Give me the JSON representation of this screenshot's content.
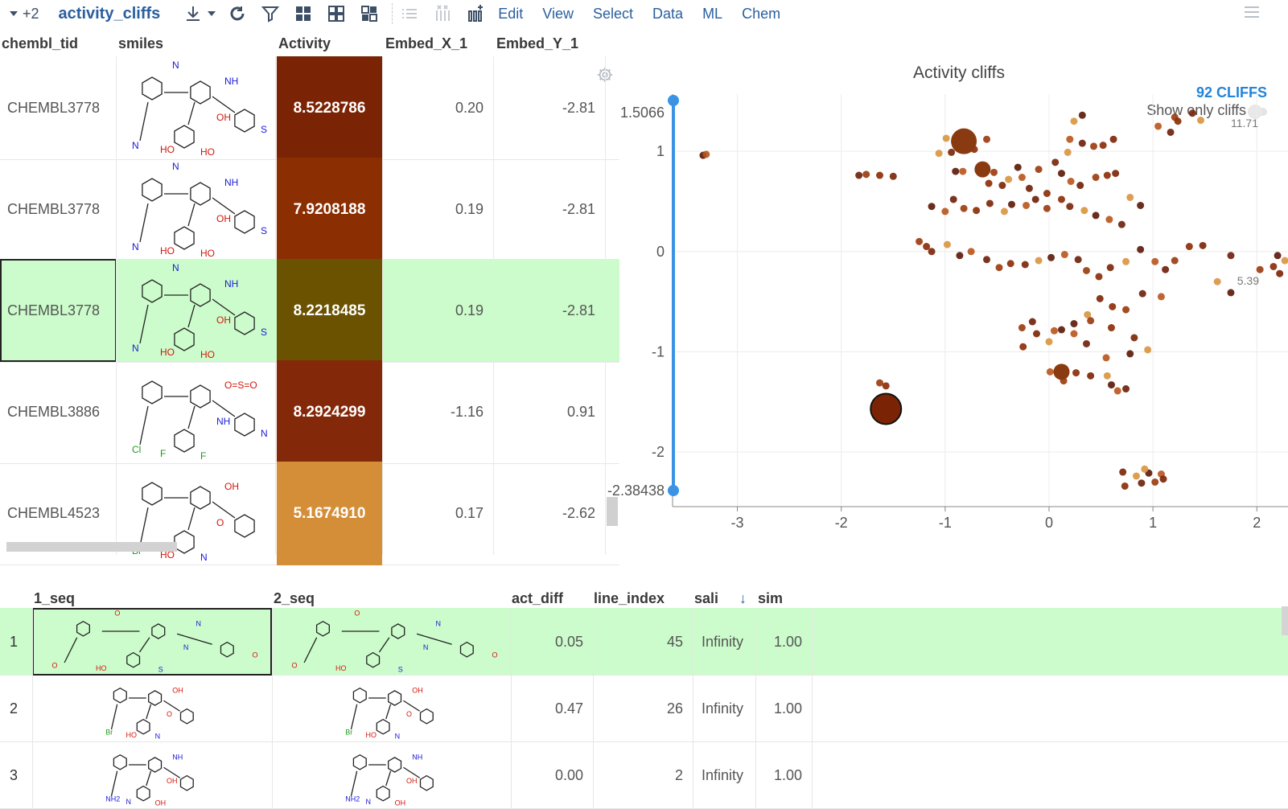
{
  "toolbar": {
    "plus_count": "+2",
    "title": "activity_cliffs",
    "menus": [
      "Edit",
      "View",
      "Select",
      "Data",
      "ML",
      "Chem"
    ]
  },
  "grid_top": {
    "columns": [
      "chembl_tid",
      "smiles",
      "Activity",
      "Embed_X_1",
      "Embed_Y_1"
    ],
    "rows": [
      {
        "chembl_tid": "CHEMBL3778",
        "activity": "8.5228786",
        "embed_x": "0.20",
        "embed_y": "-2.81",
        "activity_color": "#7a2405",
        "structure_labels": [
          "N",
          "HO",
          "HO",
          "OH",
          "NH",
          "S",
          "N"
        ]
      },
      {
        "chembl_tid": "CHEMBL3778",
        "activity": "7.9208188",
        "embed_x": "0.19",
        "embed_y": "-2.81",
        "activity_color": "#8b2e02",
        "structure_labels": [
          "N",
          "HO",
          "HO",
          "OH",
          "NH",
          "S",
          "N"
        ]
      },
      {
        "chembl_tid": "CHEMBL3778",
        "activity": "8.2218485",
        "embed_x": "0.19",
        "embed_y": "-2.81",
        "activity_color": "#6a5200",
        "structure_labels": [
          "N",
          "HO",
          "HO",
          "OH",
          "NH",
          "S",
          "N"
        ]
      },
      {
        "chembl_tid": "CHEMBL3886",
        "activity": "8.2924299",
        "embed_x": "-1.16",
        "embed_y": "0.91",
        "activity_color": "#84280a",
        "structure_labels": [
          "Cl",
          "F",
          "F",
          "NH",
          "O=S=O",
          "N"
        ]
      },
      {
        "chembl_tid": "CHEMBL4523",
        "activity": "5.1674910",
        "embed_x": "0.17",
        "embed_y": "-2.62",
        "activity_color": "#d48e37",
        "structure_labels": [
          "Br",
          "HO",
          "N",
          "O",
          "OH"
        ]
      }
    ]
  },
  "chart_data": {
    "type": "scatter",
    "title": "Activity cliffs",
    "cliffs_label": "92 CLIFFS",
    "toggle_label": "Show only cliffs",
    "color_legend_max": "11.71",
    "color_legend_mid": "5.39",
    "xlim": [
      -3.5,
      2.3
    ],
    "ylim": [
      -2.38438,
      1.5066
    ],
    "y_range_labels": [
      "1.5066",
      "-2.38438"
    ],
    "x_ticks": [
      -3,
      -2,
      -1,
      0,
      1,
      2
    ],
    "y_ticks": [
      1,
      0,
      -1,
      -2
    ],
    "grid": true,
    "points": [
      [
        -3.33,
        0.96
      ],
      [
        -3.3,
        0.97
      ],
      [
        -1.83,
        0.76
      ],
      [
        -1.76,
        0.77
      ],
      [
        -1.63,
        0.76
      ],
      [
        -1.5,
        0.75
      ],
      [
        -0.99,
        1.13
      ],
      [
        -0.88,
        1.11
      ],
      [
        -0.8,
        1.07
      ],
      [
        -0.74,
        1.1
      ],
      [
        -0.6,
        1.12
      ],
      [
        -0.72,
        1.02
      ],
      [
        -0.94,
        0.99
      ],
      [
        -1.06,
        0.98
      ],
      [
        -0.9,
        0.8
      ],
      [
        -0.83,
        0.8
      ],
      [
        -0.68,
        0.82
      ],
      [
        -0.53,
        0.79
      ],
      [
        -0.58,
        0.68
      ],
      [
        -0.45,
        0.66
      ],
      [
        -0.39,
        0.72
      ],
      [
        -0.3,
        0.84
      ],
      [
        -0.26,
        0.74
      ],
      [
        -0.19,
        0.63
      ],
      [
        -0.1,
        0.82
      ],
      [
        -0.02,
        0.58
      ],
      [
        0.06,
        0.89
      ],
      [
        0.18,
        0.99
      ],
      [
        0.12,
        0.78
      ],
      [
        0.21,
        0.7
      ],
      [
        0.3,
        0.66
      ],
      [
        0.45,
        0.74
      ],
      [
        0.56,
        0.76
      ],
      [
        0.64,
        0.78
      ],
      [
        0.78,
        0.54
      ],
      [
        0.88,
        0.46
      ],
      [
        0.2,
        1.12
      ],
      [
        0.32,
        1.08
      ],
      [
        0.43,
        1.05
      ],
      [
        0.52,
        1.06
      ],
      [
        0.62,
        1.12
      ],
      [
        0.24,
        1.3
      ],
      [
        0.32,
        1.36
      ],
      [
        1.05,
        1.25
      ],
      [
        1.17,
        1.19
      ],
      [
        1.21,
        1.34
      ],
      [
        1.24,
        1.3
      ],
      [
        1.38,
        1.38
      ],
      [
        1.46,
        1.31
      ],
      [
        -1.13,
        0.45
      ],
      [
        -1.0,
        0.4
      ],
      [
        -0.92,
        0.52
      ],
      [
        -0.82,
        0.43
      ],
      [
        -0.7,
        0.41
      ],
      [
        -0.57,
        0.48
      ],
      [
        -0.43,
        0.4
      ],
      [
        -0.36,
        0.47
      ],
      [
        -0.22,
        0.46
      ],
      [
        -0.13,
        0.52
      ],
      [
        -0.02,
        0.43
      ],
      [
        0.12,
        0.52
      ],
      [
        0.2,
        0.45
      ],
      [
        0.34,
        0.41
      ],
      [
        0.45,
        0.36
      ],
      [
        0.58,
        0.32
      ],
      [
        0.7,
        0.27
      ],
      [
        -1.25,
        0.1
      ],
      [
        -1.18,
        0.05
      ],
      [
        -1.13,
        0.0
      ],
      [
        -0.98,
        0.07
      ],
      [
        -0.86,
        -0.04
      ],
      [
        -0.75,
        0.0
      ],
      [
        -0.6,
        -0.08
      ],
      [
        -0.48,
        -0.16
      ],
      [
        -0.37,
        -0.12
      ],
      [
        -0.23,
        -0.13
      ],
      [
        -0.1,
        -0.09
      ],
      [
        0.02,
        -0.06
      ],
      [
        0.15,
        -0.03
      ],
      [
        0.28,
        -0.08
      ],
      [
        0.36,
        -0.19
      ],
      [
        0.48,
        -0.25
      ],
      [
        0.59,
        -0.16
      ],
      [
        0.74,
        -0.1
      ],
      [
        0.88,
        0.02
      ],
      [
        1.02,
        -0.1
      ],
      [
        1.12,
        -0.18
      ],
      [
        1.21,
        -0.09
      ],
      [
        1.35,
        0.05
      ],
      [
        1.48,
        0.06
      ],
      [
        1.62,
        -0.3
      ],
      [
        1.75,
        -0.41
      ],
      [
        1.08,
        -0.45
      ],
      [
        0.9,
        -0.42
      ],
      [
        0.74,
        -0.58
      ],
      [
        0.61,
        -0.55
      ],
      [
        0.49,
        -0.47
      ],
      [
        0.37,
        -0.63
      ],
      [
        0.24,
        -0.72
      ],
      [
        0.05,
        -0.79
      ],
      [
        -0.16,
        -0.7
      ],
      [
        -0.26,
        -0.76
      ],
      [
        -0.25,
        -0.95
      ],
      [
        -0.12,
        -0.82
      ],
      [
        0.0,
        -0.9
      ],
      [
        0.12,
        -0.78
      ],
      [
        0.24,
        -0.82
      ],
      [
        0.36,
        -0.92
      ],
      [
        0.4,
        -0.69
      ],
      [
        0.6,
        -0.76
      ],
      [
        0.82,
        -0.86
      ],
      [
        0.95,
        -0.98
      ],
      [
        0.78,
        -1.02
      ],
      [
        0.55,
        -1.06
      ],
      [
        1.75,
        -0.04
      ],
      [
        2.03,
        -0.18
      ],
      [
        2.16,
        -0.15
      ],
      [
        2.22,
        -0.22
      ],
      [
        2.27,
        -0.09
      ],
      [
        2.2,
        -0.04
      ],
      [
        0.01,
        -1.2
      ],
      [
        0.1,
        -1.23
      ],
      [
        0.14,
        -1.29
      ],
      [
        0.26,
        -1.21
      ],
      [
        0.4,
        -1.24
      ],
      [
        0.56,
        -1.24
      ],
      [
        0.6,
        -1.33
      ],
      [
        0.66,
        -1.39
      ],
      [
        0.74,
        -1.37
      ],
      [
        -1.63,
        -1.31
      ],
      [
        -1.57,
        -1.34
      ],
      [
        0.71,
        -2.2
      ],
      [
        0.84,
        -2.24
      ],
      [
        0.96,
        -2.21
      ],
      [
        1.08,
        -2.22
      ],
      [
        0.89,
        -2.31
      ],
      [
        1.02,
        -2.3
      ],
      [
        0.73,
        -2.34
      ],
      [
        1.1,
        -2.27
      ],
      [
        0.92,
        -2.17
      ]
    ],
    "large_points": [
      [
        -0.82,
        1.1
      ],
      [
        -0.64,
        0.82
      ],
      [
        0.12,
        -1.2
      ],
      [
        -1.57,
        -1.57
      ]
    ]
  },
  "grid_bottom": {
    "columns": [
      "1_seq",
      "2_seq",
      "act_diff",
      "line_index",
      "sali",
      "sim"
    ],
    "sort_indicator": "↓",
    "rows": [
      {
        "n": "1",
        "act_diff": "0.05",
        "line_index": "45",
        "sali": "Infinity",
        "sim": "1.00",
        "structure_labels": [
          "O",
          "HO",
          "S",
          "N",
          "N",
          "O",
          "O"
        ]
      },
      {
        "n": "2",
        "act_diff": "0.47",
        "line_index": "26",
        "sali": "Infinity",
        "sim": "1.00",
        "structure_labels": [
          "Br",
          "HO",
          "N",
          "O",
          "OH"
        ]
      },
      {
        "n": "3",
        "act_diff": "0.00",
        "line_index": "2",
        "sali": "Infinity",
        "sim": "1.00",
        "structure_labels": [
          "NH2",
          "N",
          "OH",
          "OH",
          "NH"
        ]
      }
    ]
  }
}
